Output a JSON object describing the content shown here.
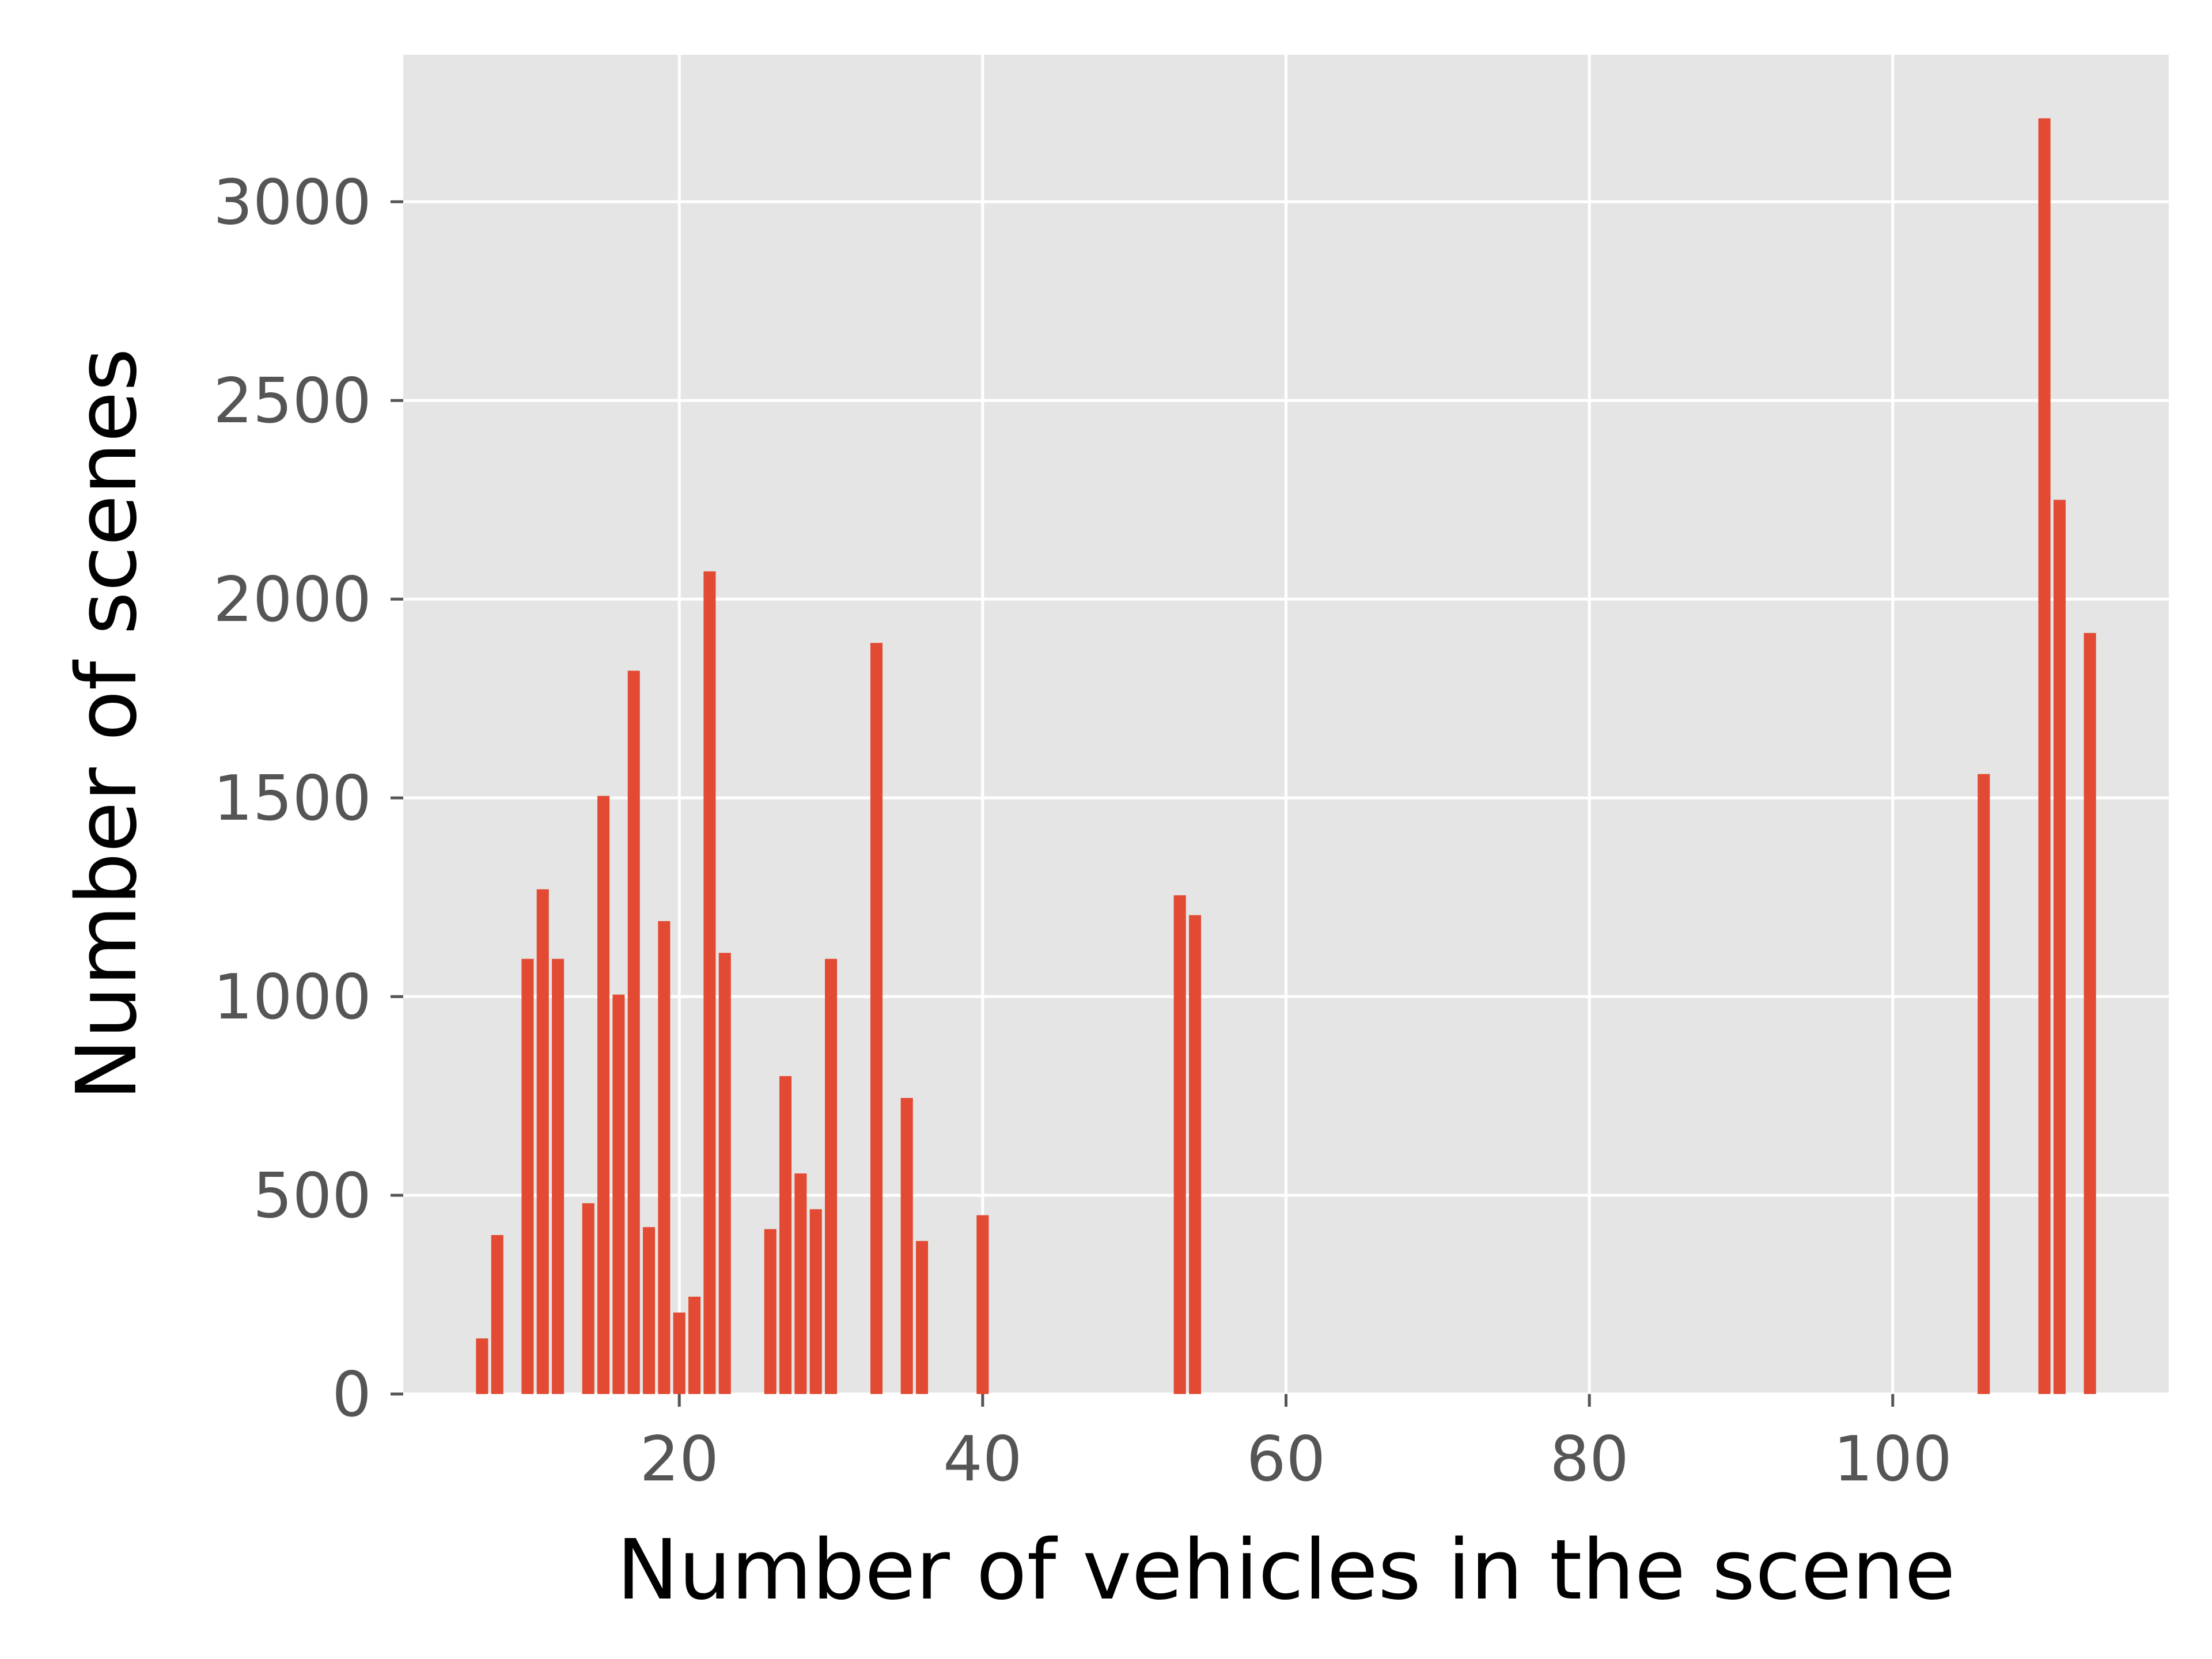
{
  "chart_data": {
    "type": "bar",
    "title": "",
    "xlabel": "Number of vehicles in the scene",
    "ylabel": "Number of scenes",
    "xlim": [
      1.8,
      118.2
    ],
    "ylim": [
      0,
      3370
    ],
    "xticks": [
      20,
      40,
      60,
      80,
      100
    ],
    "yticks": [
      0,
      500,
      1000,
      1500,
      2000,
      2500,
      3000
    ],
    "grid": true,
    "legend": "none",
    "colors": {
      "bar": "#e24a33",
      "plot_background": "#e5e5e5",
      "grid": "#ffffff"
    },
    "x": [
      7,
      8,
      10,
      11,
      12,
      14,
      15,
      16,
      17,
      18,
      19,
      20,
      21,
      22,
      23,
      26,
      27,
      28,
      29,
      30,
      33,
      35,
      36,
      40,
      53,
      54,
      106,
      110,
      111,
      113
    ],
    "values": [
      140,
      400,
      1095,
      1270,
      1095,
      480,
      1505,
      1005,
      1820,
      420,
      1190,
      205,
      245,
      2070,
      1110,
      415,
      800,
      555,
      465,
      1095,
      1890,
      745,
      385,
      450,
      1255,
      1205,
      1560,
      3210,
      2250,
      1915
    ]
  }
}
